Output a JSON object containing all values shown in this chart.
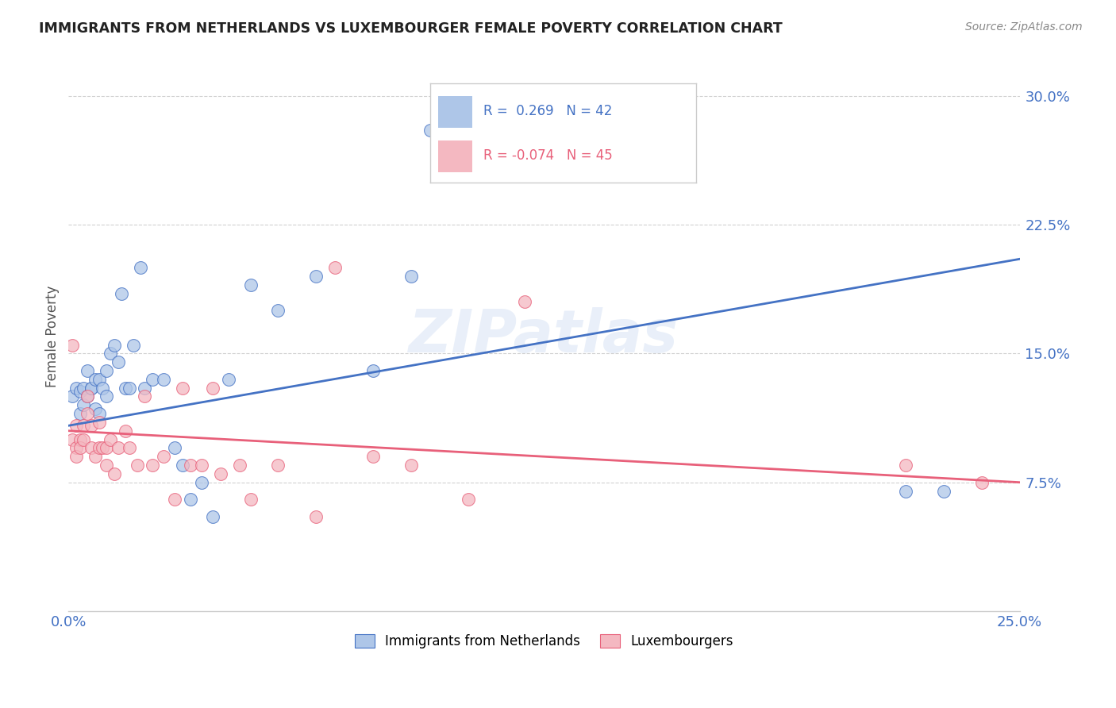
{
  "title": "IMMIGRANTS FROM NETHERLANDS VS LUXEMBOURGER FEMALE POVERTY CORRELATION CHART",
  "source": "Source: ZipAtlas.com",
  "ylabel": "Female Poverty",
  "yticks": [
    "7.5%",
    "15.0%",
    "22.5%",
    "30.0%"
  ],
  "ytick_vals": [
    0.075,
    0.15,
    0.225,
    0.3
  ],
  "xlim": [
    0.0,
    0.25
  ],
  "ylim": [
    0.0,
    0.32
  ],
  "series1_color": "#aec6e8",
  "series2_color": "#f4b8c1",
  "line1_color": "#4472c4",
  "line2_color": "#e8607a",
  "legend_r1": "R =  0.269",
  "legend_n1": "N = 42",
  "legend_r2": "R = -0.074",
  "legend_n2": "N = 45",
  "watermark": "ZIPatlas",
  "title_color": "#222222",
  "axis_label_color": "#4472c4",
  "series1_x": [
    0.001,
    0.002,
    0.003,
    0.003,
    0.004,
    0.004,
    0.005,
    0.005,
    0.006,
    0.006,
    0.007,
    0.007,
    0.008,
    0.008,
    0.009,
    0.01,
    0.01,
    0.011,
    0.012,
    0.013,
    0.014,
    0.015,
    0.016,
    0.017,
    0.019,
    0.02,
    0.022,
    0.025,
    0.028,
    0.03,
    0.032,
    0.035,
    0.038,
    0.042,
    0.048,
    0.055,
    0.065,
    0.08,
    0.09,
    0.095,
    0.22,
    0.23
  ],
  "series1_y": [
    0.125,
    0.13,
    0.128,
    0.115,
    0.13,
    0.12,
    0.14,
    0.125,
    0.13,
    0.13,
    0.135,
    0.118,
    0.135,
    0.115,
    0.13,
    0.14,
    0.125,
    0.15,
    0.155,
    0.145,
    0.185,
    0.13,
    0.13,
    0.155,
    0.2,
    0.13,
    0.135,
    0.135,
    0.095,
    0.085,
    0.065,
    0.075,
    0.055,
    0.135,
    0.19,
    0.175,
    0.195,
    0.14,
    0.195,
    0.28,
    0.07,
    0.07
  ],
  "series2_x": [
    0.001,
    0.001,
    0.002,
    0.002,
    0.002,
    0.003,
    0.003,
    0.004,
    0.004,
    0.005,
    0.005,
    0.006,
    0.006,
    0.007,
    0.008,
    0.008,
    0.009,
    0.01,
    0.01,
    0.011,
    0.012,
    0.013,
    0.015,
    0.016,
    0.018,
    0.02,
    0.022,
    0.025,
    0.028,
    0.03,
    0.032,
    0.035,
    0.038,
    0.04,
    0.045,
    0.048,
    0.055,
    0.065,
    0.07,
    0.08,
    0.09,
    0.105,
    0.12,
    0.22,
    0.24
  ],
  "series2_y": [
    0.155,
    0.1,
    0.108,
    0.095,
    0.09,
    0.1,
    0.095,
    0.108,
    0.1,
    0.125,
    0.115,
    0.108,
    0.095,
    0.09,
    0.11,
    0.095,
    0.095,
    0.085,
    0.095,
    0.1,
    0.08,
    0.095,
    0.105,
    0.095,
    0.085,
    0.125,
    0.085,
    0.09,
    0.065,
    0.13,
    0.085,
    0.085,
    0.13,
    0.08,
    0.085,
    0.065,
    0.085,
    0.055,
    0.2,
    0.09,
    0.085,
    0.065,
    0.18,
    0.085,
    0.075
  ],
  "line1_y_start": 0.108,
  "line1_y_end": 0.205,
  "line2_y_start": 0.105,
  "line2_y_end": 0.075,
  "marker_size": 130,
  "gridline_color": "#d0d0d0",
  "legend_text_color_blue": "#4472c4",
  "legend_text_color_pink": "#e8607a"
}
